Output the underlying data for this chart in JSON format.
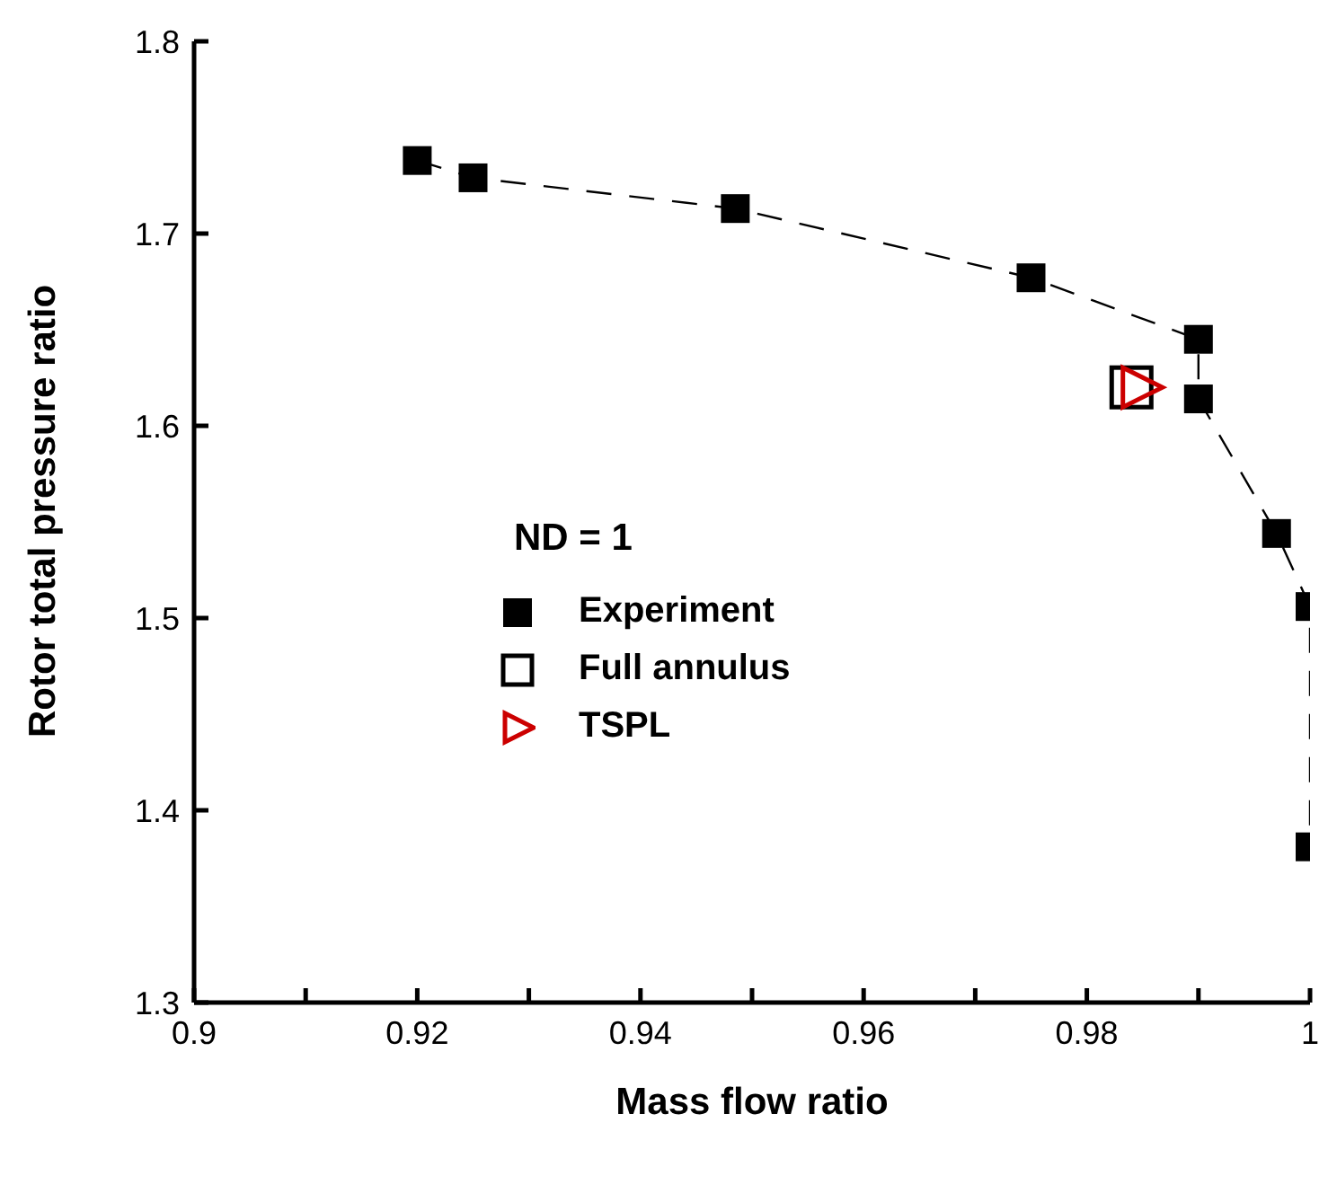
{
  "chart_data": {
    "type": "line",
    "xlabel": "Mass flow ratio",
    "ylabel": "Rotor total pressure ratio",
    "legend_title": "ND = 1",
    "legend": "left",
    "xlim": [
      0.9,
      1
    ],
    "xticks": [
      0.9,
      {
        "value": 0.91,
        "label": null
      },
      0.92,
      {
        "value": 0.93,
        "label": null
      },
      0.94,
      {
        "value": 0.95,
        "label": null
      },
      0.96,
      {
        "value": 0.97,
        "label": null
      },
      0.98,
      {
        "value": 0.99,
        "label": null
      },
      1
    ],
    "ylim": [
      1.3,
      1.8
    ],
    "yticks": [
      1.3,
      1.4,
      1.5,
      1.6,
      1.7,
      1.8
    ],
    "grid": false,
    "series": [
      {
        "name": "Experiment",
        "type": "line",
        "color": "#000000",
        "marker": "square",
        "line_style": "dashed",
        "x": [
          0.92,
          0.925,
          0.9485,
          0.975,
          0.99,
          0.99,
          0.997,
          1.0,
          1.0
        ],
        "values": [
          1.738,
          1.729,
          1.713,
          1.677,
          1.645,
          1.614,
          1.544,
          1.506,
          1.381
        ]
      },
      {
        "name": "Full annulus",
        "type": "scatter",
        "color": "#000000",
        "marker": "square",
        "x": [
          0.984
        ],
        "values": [
          1.62
        ]
      },
      {
        "name": "TSPL",
        "type": "scatter",
        "color": "#cc0000",
        "marker": "triangle",
        "x": [
          0.985
        ],
        "values": [
          1.62
        ]
      }
    ]
  }
}
